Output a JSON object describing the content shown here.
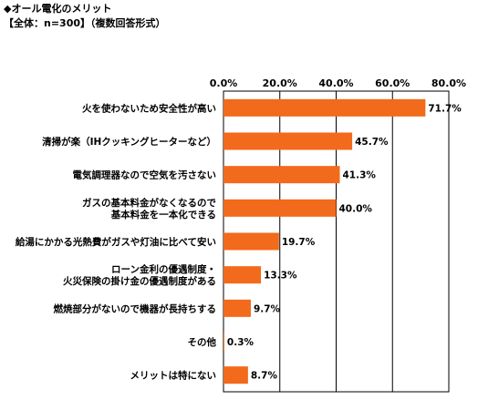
{
  "header": {
    "title": "◆オール電化のメリット",
    "subtitle": "【全体：n=300】（複数回答形式）"
  },
  "chart_data": {
    "type": "bar",
    "orientation": "horizontal",
    "bar_color": "#f26a1b",
    "xlim": [
      0,
      80
    ],
    "x_ticks": [
      "0.0%",
      "20.0%",
      "40.0%",
      "60.0%",
      "80.0%"
    ],
    "grid": "vertical",
    "categories": [
      [
        "火を使わないため安全性が高い"
      ],
      [
        "清掃が楽（IHクッキングヒーターなど）"
      ],
      [
        "電気調理器なので空気を汚さない"
      ],
      [
        "ガスの基本料金がなくなるので",
        "基本料金を一本化できる"
      ],
      [
        "給湯にかかる光熱費がガスや灯油に比べて安い"
      ],
      [
        "ローン金利の優遇制度・",
        "火災保険の掛け金の優遇制度がある"
      ],
      [
        "燃焼部分がないので機器が長持ちする"
      ],
      [
        "その他"
      ],
      [
        "メリットは特にない"
      ]
    ],
    "values": [
      71.7,
      45.7,
      41.3,
      40.0,
      19.7,
      13.3,
      9.7,
      0.3,
      8.7
    ],
    "value_labels": [
      "71.7%",
      "45.7%",
      "41.3%",
      "40.0%",
      "19.7%",
      "13.3%",
      "9.7%",
      "0.3%",
      "8.7%"
    ]
  }
}
